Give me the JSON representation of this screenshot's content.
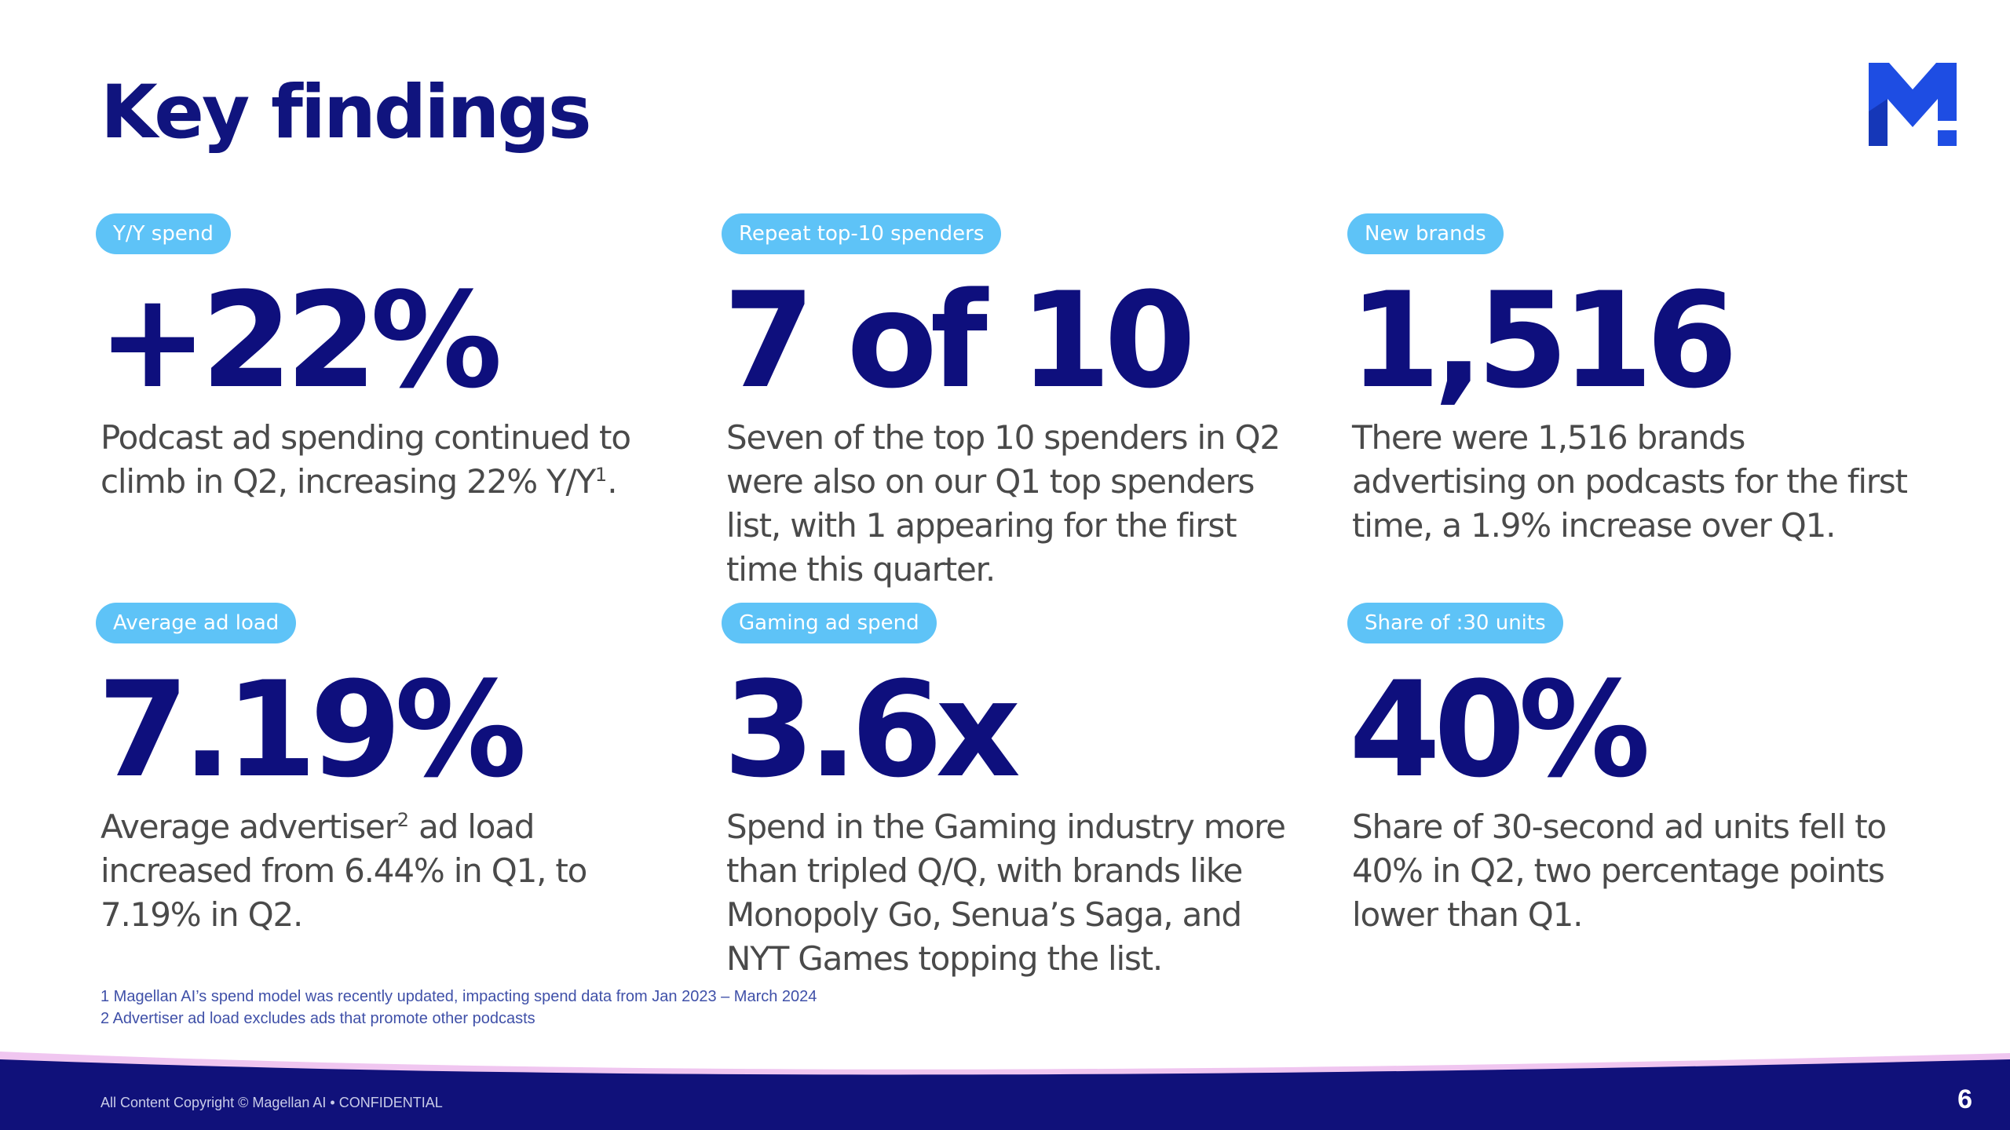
{
  "title": "Key findings",
  "cards": [
    {
      "tag": "Y/Y spend",
      "stat": "+22%",
      "desc": "Podcast ad spending continued to climb in Q2, increasing 22% Y/Y",
      "desc_sup": "1",
      "desc_after": "."
    },
    {
      "tag": "Repeat top-10 spenders",
      "stat": "7 of 10",
      "desc": "Seven of the top 10 spenders in Q2 were also on our Q1 top spenders list, with 1 appearing for the first time this quarter."
    },
    {
      "tag": "New brands",
      "stat": "1,516",
      "desc": "There were 1,516 brands advertising on podcasts for the first time, a 1.9% increase over Q1."
    },
    {
      "tag": "Average ad load",
      "stat": "7.19%",
      "desc": "Average advertiser",
      "desc_sup": "2",
      "desc_after": " ad load increased from 6.44% in Q1, to 7.19% in Q2."
    },
    {
      "tag": "Gaming ad spend",
      "stat": "3.6x",
      "desc": "Spend in the Gaming industry more than tripled Q/Q, with brands like Monopoly Go, Senua’s Saga, and NYT Games topping the list."
    },
    {
      "tag": "Share of :30 units",
      "stat": "40%",
      "desc": "Share of 30-second ad units fell to 40% in Q2, two percentage points lower than Q1."
    }
  ],
  "footnotes": [
    "1 Magellan AI’s spend model was recently updated, impacting spend data from Jan 2023 – March 2024",
    "2 Advertiser ad load excludes ads that promote other podcasts"
  ],
  "footer": {
    "copyright": "All Content Copyright © Magellan AI • CONFIDENTIAL",
    "page_number": "6"
  },
  "colors": {
    "navy": "#0e0f7d",
    "tag_blue": "#5ec3f7",
    "logo_blue": "#1e4de3",
    "pink_accent": "#f0c6f0"
  },
  "logo": {
    "icon": "magellan-m-logo-icon"
  }
}
